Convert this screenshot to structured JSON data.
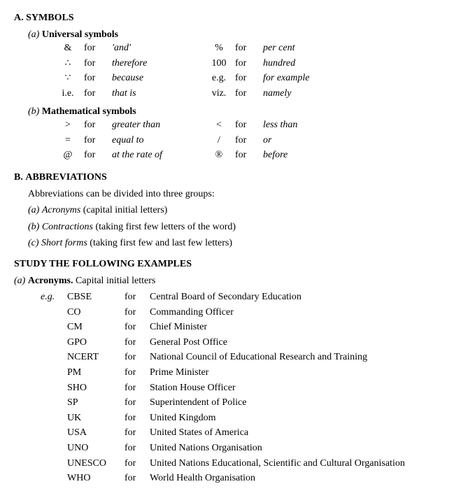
{
  "sections": {
    "a": {
      "letter": "A.",
      "title": "SYMBOLS",
      "groups": {
        "universal": {
          "letter": "(a)",
          "title": "Universal symbols",
          "rows": [
            {
              "s1": "&",
              "f1": "for",
              "m1": "'and'",
              "s2": "%",
              "f2": "for",
              "m2": "per cent"
            },
            {
              "s1": "∴",
              "f1": "for",
              "m1": "therefore",
              "s2": "100",
              "f2": "for",
              "m2": "hundred"
            },
            {
              "s1": "∵",
              "f1": "for",
              "m1": "because",
              "s2": "e.g.",
              "f2": "for",
              "m2": "for example"
            },
            {
              "s1": "i.e.",
              "f1": "for",
              "m1": "that is",
              "s2": "viz.",
              "f2": "for",
              "m2": "namely"
            }
          ]
        },
        "math": {
          "letter": "(b)",
          "title": "Mathematical symbols",
          "rows": [
            {
              "s1": ">",
              "f1": "for",
              "m1": "greater than",
              "s2": "<",
              "f2": "for",
              "m2": "less than"
            },
            {
              "s1": "=",
              "f1": "for",
              "m1": "equal to",
              "s2": "/",
              "f2": "for",
              "m2": "or"
            },
            {
              "s1": "@",
              "f1": "for",
              "m1": "at the rate of",
              "s2": "®",
              "f2": "for",
              "m2": "before"
            }
          ]
        }
      }
    },
    "b": {
      "letter": "B.",
      "title": "ABBREVIATIONS",
      "intro": "Abbreviations can be divided into three groups:",
      "items": [
        {
          "letter": "(a)",
          "name": "Acronyms",
          "note": "(capital initial letters)"
        },
        {
          "letter": "(b)",
          "name": "Contractions",
          "note": "(taking first few letters of the word)"
        },
        {
          "letter": "(c)",
          "name": "Short forms",
          "note": "(taking first few and last few letters)"
        }
      ]
    },
    "study": {
      "title": "STUDY THE FOLLOWING EXAMPLES",
      "sub": {
        "letter": "(a)",
        "name": "Acronyms.",
        "note": "Capital initial letters"
      },
      "eg": "e.g.",
      "for": "for",
      "rows": [
        {
          "abbr": "CBSE",
          "full": "Central Board of Secondary Education"
        },
        {
          "abbr": "CO",
          "full": "Commanding Officer"
        },
        {
          "abbr": "CM",
          "full": "Chief Minister"
        },
        {
          "abbr": "GPO",
          "full": "General Post Office"
        },
        {
          "abbr": "NCERT",
          "full": "National Council of Educational Research and Training"
        },
        {
          "abbr": "PM",
          "full": "Prime Minister"
        },
        {
          "abbr": "SHO",
          "full": "Station House Officer"
        },
        {
          "abbr": "SP",
          "full": "Superintendent of Police"
        },
        {
          "abbr": "UK",
          "full": "United Kingdom"
        },
        {
          "abbr": "USA",
          "full": "United States of America"
        },
        {
          "abbr": "UNO",
          "full": "United Nations Organisation"
        },
        {
          "abbr": "UNESCO",
          "full": "United Nations Educational, Scientific and Cultural Organisation"
        },
        {
          "abbr": "WHO",
          "full": "World Health Organisation"
        }
      ]
    }
  }
}
